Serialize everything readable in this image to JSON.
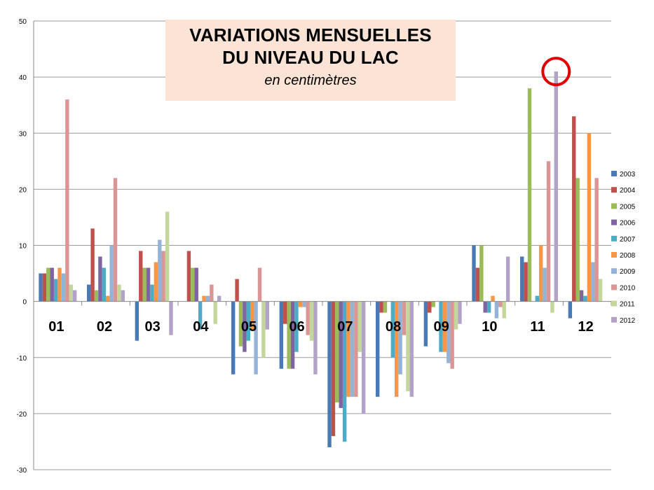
{
  "chart_data": {
    "type": "bar",
    "title_line1": "VARIATIONS MENSUELLES",
    "title_line2": "DU NIVEAU DU LAC",
    "subtitle": "en centimètres",
    "xlabel": "",
    "ylabel": "",
    "ylim": [
      -30,
      50
    ],
    "yticks": [
      50,
      40,
      30,
      20,
      10,
      0,
      -10,
      -20,
      -30
    ],
    "grid": true,
    "legend_position": "right",
    "categories": [
      "01",
      "02",
      "03",
      "04",
      "05",
      "06",
      "07",
      "08",
      "09",
      "10",
      "11",
      "12"
    ],
    "series": [
      {
        "name": "2003",
        "color": "#4a7ab5",
        "values": [
          5,
          3,
          -7,
          0,
          -13,
          -12,
          -26,
          -17,
          -8,
          10,
          8,
          -3
        ]
      },
      {
        "name": "2004",
        "color": "#c0504d",
        "values": [
          5,
          13,
          9,
          9,
          4,
          -4,
          -24,
          -2,
          -2,
          6,
          7,
          33
        ]
      },
      {
        "name": "2005",
        "color": "#9bbb59",
        "values": [
          6,
          2,
          6,
          6,
          -8,
          -12,
          -18,
          -2,
          -1,
          10,
          38,
          22
        ]
      },
      {
        "name": "2006",
        "color": "#8064a2",
        "values": [
          6,
          8,
          6,
          6,
          -9,
          -12,
          -19,
          0,
          0,
          -2,
          0,
          2
        ]
      },
      {
        "name": "2007",
        "color": "#4bacc6",
        "values": [
          4,
          6,
          3,
          -5,
          -7,
          -9,
          -25,
          -10,
          -9,
          -2,
          1,
          1
        ]
      },
      {
        "name": "2008",
        "color": "#f79646",
        "values": [
          6,
          1,
          7,
          1,
          -5,
          -1,
          -17,
          -17,
          -9,
          1,
          10,
          30
        ]
      },
      {
        "name": "2009",
        "color": "#95b3d7",
        "values": [
          5,
          10,
          11,
          1,
          -13,
          -1,
          -17,
          -13,
          -11,
          -3,
          6,
          7
        ]
      },
      {
        "name": "2010",
        "color": "#d99694",
        "values": [
          36,
          22,
          9,
          3,
          6,
          -6,
          -17,
          -6,
          -12,
          -1,
          25,
          22
        ]
      },
      {
        "name": "2011",
        "color": "#c3d69b",
        "values": [
          3,
          3,
          16,
          -4,
          -10,
          -7,
          -9,
          -16,
          -5,
          -3,
          -2,
          4
        ]
      },
      {
        "name": "2012",
        "color": "#b3a2c7",
        "values": [
          2,
          2,
          -6,
          1,
          -5,
          -13,
          -20,
          -17,
          -4,
          8,
          41,
          0
        ]
      }
    ],
    "annotations": [
      {
        "type": "circle-highlight",
        "category": "11",
        "series": "2012",
        "value": 41,
        "color": "#e00000"
      }
    ]
  }
}
